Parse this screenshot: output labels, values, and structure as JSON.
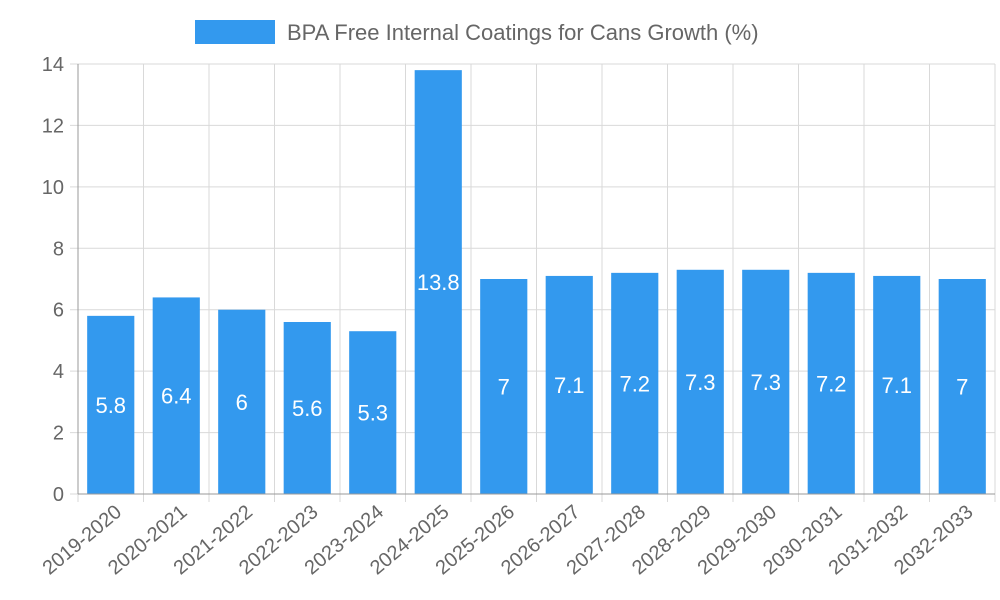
{
  "chart_data": {
    "type": "bar",
    "categories": [
      "2019-2020",
      "2020-2021",
      "2021-2022",
      "2022-2023",
      "2023-2024",
      "2024-2025",
      "2025-2026",
      "2026-2027",
      "2027-2028",
      "2028-2029",
      "2029-2030",
      "2030-2031",
      "2031-2032",
      "2032-2033"
    ],
    "series": [
      {
        "name": "BPA Free Internal Coatings for Cans Growth (%)",
        "values": [
          5.8,
          6.4,
          6,
          5.6,
          5.3,
          13.8,
          7,
          7.1,
          7.2,
          7.3,
          7.3,
          7.2,
          7.1,
          7
        ]
      }
    ],
    "ylim": [
      0,
      14
    ],
    "yticks": [
      0,
      2,
      4,
      6,
      8,
      10,
      12,
      14
    ],
    "grid": true,
    "legend_position": "top-center",
    "data_labels": true,
    "bar_color": "#3399ee",
    "label_color": "#ffffff"
  }
}
